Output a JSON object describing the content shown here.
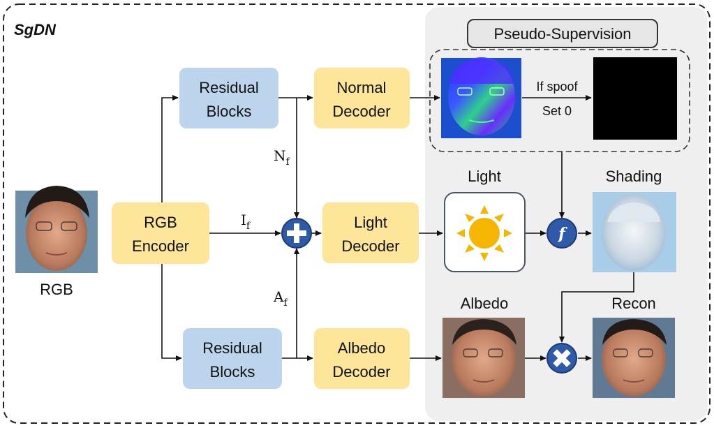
{
  "title": "SgDN",
  "pseudo_supervision_label": "Pseudo-Supervision",
  "input_label": "RGB",
  "boxes": {
    "rgb_encoder": [
      "RGB",
      "Encoder"
    ],
    "residual_top": [
      "Residual",
      "Blocks"
    ],
    "residual_bottom": [
      "Residual",
      "Blocks"
    ],
    "normal_decoder": [
      "Normal",
      "Decoder"
    ],
    "light_decoder": [
      "Light",
      "Decoder"
    ],
    "albedo_decoder": [
      "Albedo",
      "Decoder"
    ]
  },
  "features": {
    "n_main": "N",
    "i_main": "I",
    "a_main": "A",
    "sub": "f"
  },
  "spoof_text": [
    "If spoof",
    "Set 0"
  ],
  "image_labels": {
    "light": "Light",
    "shading": "Shading",
    "albedo": "Albedo",
    "recon": "Recon"
  },
  "operators": {
    "fuse": "f"
  },
  "colors": {
    "blue_box": "#bcd5ec",
    "yellow_box": "#fde59a",
    "operator": "#2f5aa8",
    "panel": "#efefef"
  }
}
